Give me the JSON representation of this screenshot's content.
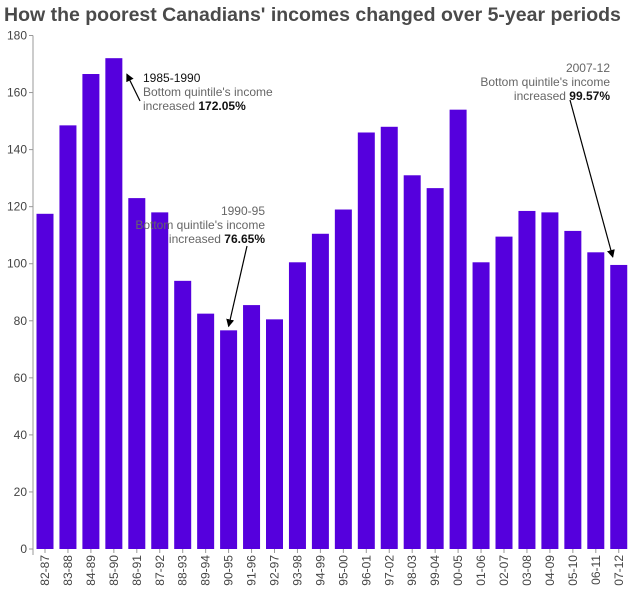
{
  "chart_data": {
    "type": "bar",
    "title": "How the poorest Canadians' incomes changed over 5-year periods",
    "xlabel": "",
    "ylabel": "",
    "ylim": [
      0,
      180
    ],
    "yticks": [
      0,
      20,
      40,
      60,
      80,
      100,
      120,
      140,
      160,
      180
    ],
    "grid": false,
    "categories": [
      "82-87",
      "83-88",
      "84-89",
      "85-90",
      "86-91",
      "87-92",
      "88-93",
      "89-94",
      "90-95",
      "91-96",
      "92-97",
      "93-98",
      "94-99",
      "95-00",
      "96-01",
      "97-02",
      "98-03",
      "99-04",
      "00-05",
      "01-06",
      "02-07",
      "03-08",
      "04-09",
      "05-10",
      "06-11",
      "07-12"
    ],
    "values": [
      117.5,
      148.5,
      166.5,
      172.05,
      123,
      118,
      94,
      82.5,
      76.65,
      85.5,
      80.5,
      100.5,
      110.5,
      119,
      146,
      148,
      131,
      126.5,
      154,
      100.5,
      109.5,
      118.5,
      118,
      111.5,
      104,
      99.57
    ],
    "bar_color": "#5500dd",
    "annotations": [
      {
        "category": "85-90",
        "head": "1985-1990",
        "line2": "Bottom quintile's income",
        "line3_prefix": "increased ",
        "value_text": "172.05%"
      },
      {
        "category": "90-95",
        "head": "1990-95",
        "line2": "Bottom quintile's income",
        "line3_prefix": "increased ",
        "value_text": "76.65%"
      },
      {
        "category": "07-12",
        "head": "2007-12",
        "line2": "Bottom quintile's income",
        "line3_prefix": "increased ",
        "value_text": "99.57%"
      }
    ]
  }
}
